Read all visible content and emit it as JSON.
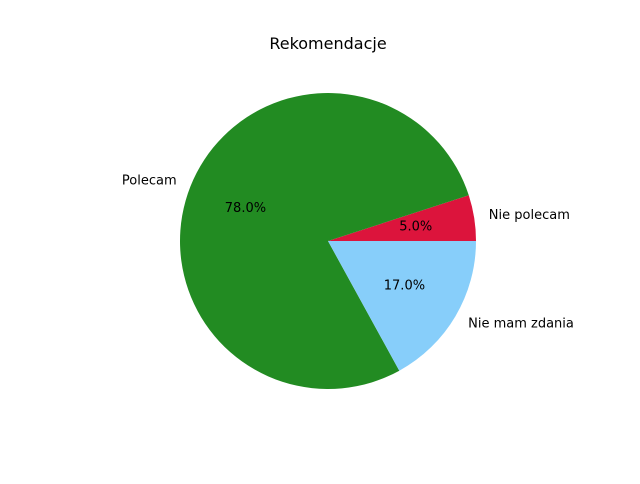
{
  "chart_data": {
    "type": "pie",
    "title": "Rekomendacje",
    "slices": [
      {
        "label": "Nie polecam",
        "value": 5.0,
        "percent_label": "5.0%",
        "color": "#dc143c"
      },
      {
        "label": "Polecam",
        "value": 78.0,
        "percent_label": "78.0%",
        "color": "#228b22"
      },
      {
        "label": "Nie mam zdania",
        "value": 17.0,
        "percent_label": "17.0%",
        "color": "#87cefa"
      }
    ],
    "start_angle_deg": 0,
    "direction": "counterclockwise",
    "legend": "none"
  }
}
